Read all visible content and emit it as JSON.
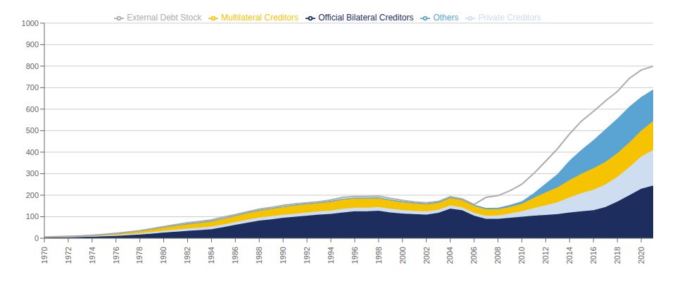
{
  "chart_data": {
    "type": "area",
    "stacked": true,
    "grid": true,
    "legend": "top",
    "x": [
      1970,
      1971,
      1972,
      1973,
      1974,
      1975,
      1976,
      1977,
      1978,
      1979,
      1980,
      1981,
      1982,
      1983,
      1984,
      1985,
      1986,
      1987,
      1988,
      1989,
      1990,
      1991,
      1992,
      1993,
      1994,
      1995,
      1996,
      1997,
      1998,
      1999,
      2000,
      2001,
      2002,
      2003,
      2004,
      2005,
      2006,
      2007,
      2008,
      2009,
      2010,
      2011,
      2012,
      2013,
      2014,
      2015,
      2016,
      2017,
      2018,
      2019,
      2020,
      2021
    ],
    "xlim": [
      1970,
      2021
    ],
    "xticks": [
      1970,
      1972,
      1974,
      1976,
      1978,
      1980,
      1982,
      1984,
      1986,
      1988,
      1990,
      1992,
      1994,
      1996,
      1998,
      2000,
      2002,
      2004,
      2006,
      2008,
      2010,
      2012,
      2014,
      2016,
      2018,
      2020
    ],
    "ylim": [
      0,
      1000
    ],
    "yticks": [
      0,
      100,
      200,
      300,
      400,
      500,
      600,
      700,
      800,
      900,
      1000
    ],
    "series": [
      {
        "name": "Official Bilateral Creditors",
        "type": "area",
        "color": "#1c2d5e",
        "values": [
          3,
          4,
          5,
          6,
          7,
          9,
          11,
          14,
          17,
          21,
          26,
          30,
          34,
          38,
          42,
          52,
          62,
          72,
          82,
          88,
          95,
          100,
          105,
          110,
          113,
          120,
          125,
          125,
          128,
          120,
          115,
          112,
          110,
          118,
          138,
          130,
          105,
          90,
          90,
          95,
          100,
          105,
          108,
          112,
          120,
          125,
          130,
          145,
          170,
          200,
          230,
          245
        ]
      },
      {
        "name": "Private Creditors",
        "type": "area",
        "color": "#cfddf0",
        "values": [
          1,
          1,
          1,
          2,
          2,
          3,
          4,
          5,
          6,
          8,
          9,
          10,
          11,
          11,
          12,
          12,
          13,
          14,
          14,
          14,
          14,
          14,
          15,
          15,
          16,
          17,
          17,
          17,
          17,
          17,
          16,
          15,
          15,
          14,
          14,
          13,
          13,
          14,
          16,
          20,
          25,
          35,
          45,
          55,
          70,
          85,
          95,
          105,
          115,
          130,
          150,
          165
        ]
      },
      {
        "name": "Multilateral Creditors",
        "type": "area",
        "color": "#f5c300",
        "values": [
          1,
          1,
          2,
          3,
          4,
          5,
          6,
          8,
          10,
          12,
          15,
          18,
          20,
          22,
          24,
          26,
          28,
          30,
          32,
          34,
          36,
          38,
          38,
          38,
          40,
          42,
          42,
          42,
          40,
          38,
          36,
          34,
          32,
          32,
          34,
          34,
          32,
          30,
          28,
          30,
          35,
          48,
          60,
          70,
          80,
          90,
          100,
          105,
          110,
          115,
          120,
          135
        ]
      },
      {
        "name": "Others",
        "type": "area",
        "color": "#5aa4d4",
        "values": [
          0,
          0,
          0,
          0,
          0,
          0,
          0,
          0,
          1,
          1,
          1,
          1,
          2,
          2,
          2,
          2,
          2,
          2,
          2,
          2,
          2,
          2,
          2,
          2,
          3,
          3,
          3,
          3,
          3,
          3,
          3,
          3,
          3,
          3,
          4,
          4,
          4,
          5,
          6,
          8,
          10,
          20,
          40,
          60,
          90,
          110,
          130,
          150,
          160,
          165,
          155,
          145
        ]
      },
      {
        "name": "External Debt Stock",
        "type": "line",
        "color": "#acacac",
        "values": [
          6,
          7,
          9,
          11,
          14,
          18,
          23,
          29,
          35,
          44,
          54,
          63,
          72,
          78,
          85,
          98,
          110,
          123,
          135,
          143,
          153,
          160,
          165,
          170,
          178,
          190,
          194,
          194,
          196,
          185,
          176,
          169,
          165,
          171,
          193,
          183,
          157,
          190,
          198,
          221,
          251,
          301,
          358,
          417,
          485,
          545,
          590,
          638,
          682,
          743,
          782,
          800
        ]
      }
    ]
  }
}
